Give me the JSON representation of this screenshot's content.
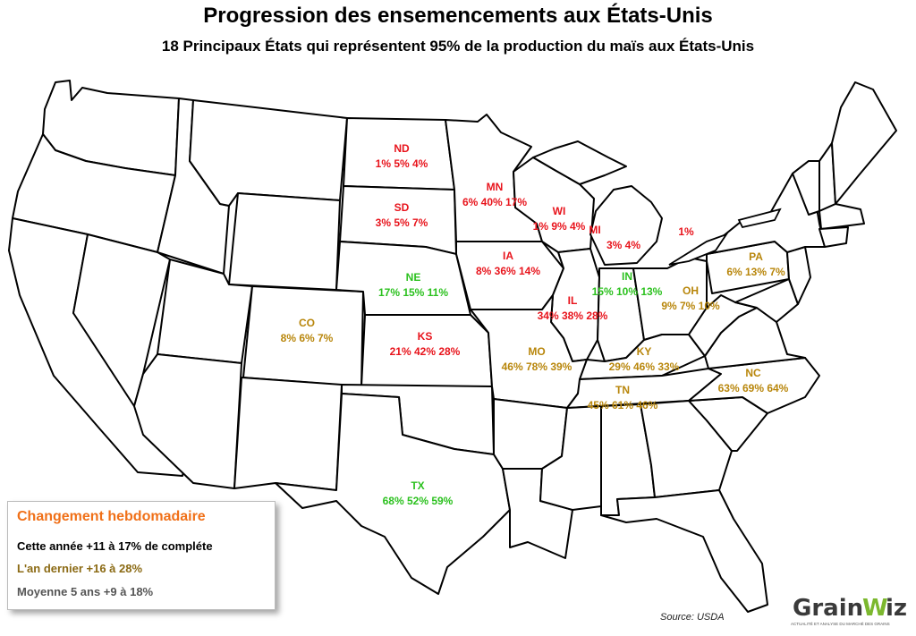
{
  "title": "Progression des ensemencements aux États-Unis",
  "subtitle": "18 Principaux États qui représentent 95% de la production du maïs aux États-Unis",
  "colors": {
    "red": "#e8141c",
    "green": "#2cc11f",
    "gold": "#b8860b",
    "orange": "#f07018",
    "legend_black": "#000000",
    "legend_brown": "#8b6a14",
    "legend_gray": "#555555"
  },
  "states": {
    "ND": {
      "abbr": "ND",
      "values": "1%  5%  4%",
      "color": "red"
    },
    "SD": {
      "abbr": "SD",
      "values": "3%  5%  7%",
      "color": "red"
    },
    "MN": {
      "abbr": "MN",
      "values": "6%  40%  17%",
      "color": "red"
    },
    "WI": {
      "abbr": "WI",
      "values": "1%  9%  4%",
      "color": "red"
    },
    "MI": {
      "abbr": "MI",
      "values": "3%  4%",
      "extra": "1%",
      "color": "red"
    },
    "IA": {
      "abbr": "IA",
      "values": "8%  36%  14%",
      "color": "red"
    },
    "IL": {
      "abbr": "IL",
      "values": "34%  38%  28%",
      "color": "red"
    },
    "KS": {
      "abbr": "KS",
      "values": "21%  42%  28%",
      "color": "red"
    },
    "NE": {
      "abbr": "NE",
      "values": "17%  15%  11%",
      "color": "green"
    },
    "IN": {
      "abbr": "IN",
      "values": "15%  10%  13%",
      "color": "green"
    },
    "TX": {
      "abbr": "TX",
      "values": "68%  52%  59%",
      "color": "green"
    },
    "CO": {
      "abbr": "CO",
      "values": "8%  6%  7%",
      "color": "gold"
    },
    "OH": {
      "abbr": "OH",
      "values": "9%  7%  10%",
      "color": "gold"
    },
    "PA": {
      "abbr": "PA",
      "values": "6%  13%  7%",
      "color": "gold"
    },
    "MO": {
      "abbr": "MO",
      "values": "46%  78%  39%",
      "color": "gold"
    },
    "KY": {
      "abbr": "KY",
      "values": "29%  46%  33%",
      "color": "gold"
    },
    "TN": {
      "abbr": "TN",
      "values": "45%  61%  46%",
      "color": "gold"
    },
    "NC": {
      "abbr": "NC",
      "values": "63%  69%  64%",
      "color": "gold"
    }
  },
  "legend": {
    "heading": "Changement hebdomadaire",
    "this_year": "Cette année +11 à 17% de compléte",
    "last_year": "L'an dernier +16 à 28%",
    "avg5": "Moyenne 5 ans +9 à 18%"
  },
  "source": "Source: USDA",
  "logo": {
    "word": "GrainWiz",
    "tagline": "ACTUALITÉ ET ANALYSE DU MARCHÉ DES GRAINS"
  }
}
